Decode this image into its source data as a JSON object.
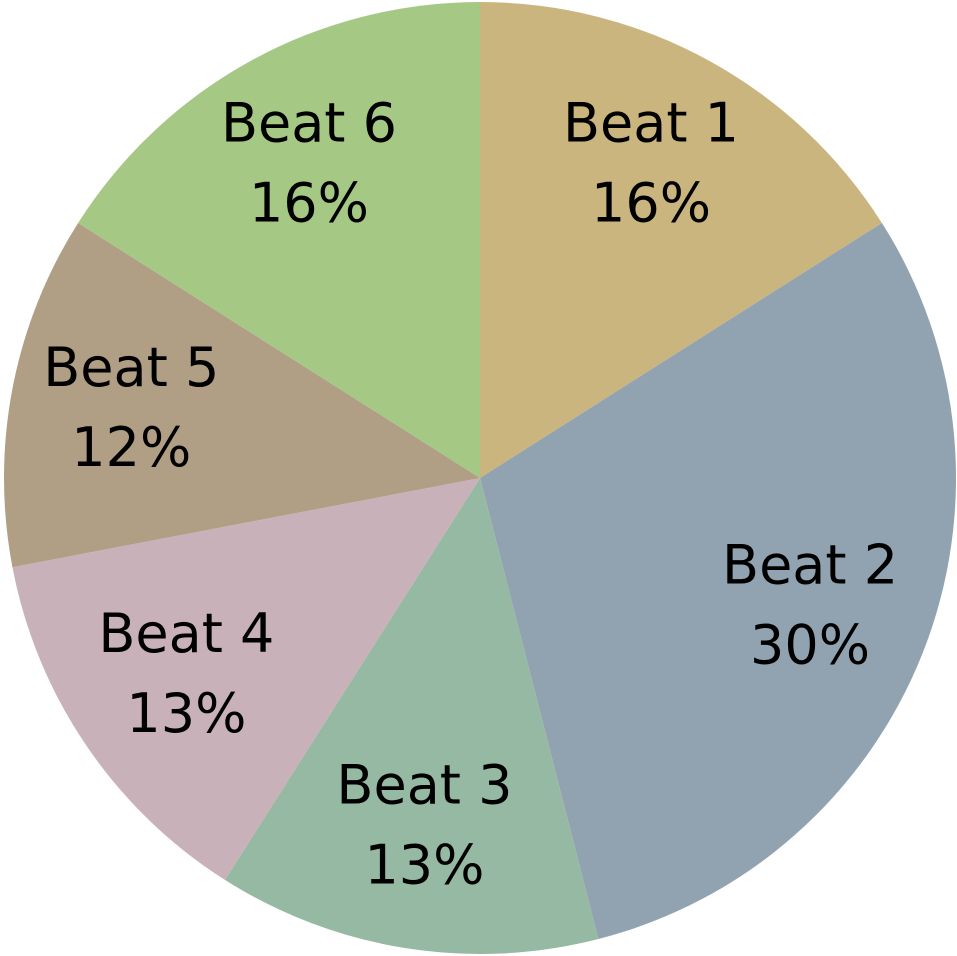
{
  "chart_data": {
    "type": "pie",
    "categories": [
      "Beat 1",
      "Beat 2",
      "Beat 3",
      "Beat 4",
      "Beat 5",
      "Beat 6"
    ],
    "values": [
      16,
      30,
      13,
      13,
      12,
      16
    ],
    "value_labels": [
      "16%",
      "30%",
      "13%",
      "13%",
      "12%",
      "16%"
    ],
    "colors": [
      "#cbb57f",
      "#91a3b0",
      "#96b9a3",
      "#c9b1b9",
      "#b09e85",
      "#a5c885"
    ]
  }
}
